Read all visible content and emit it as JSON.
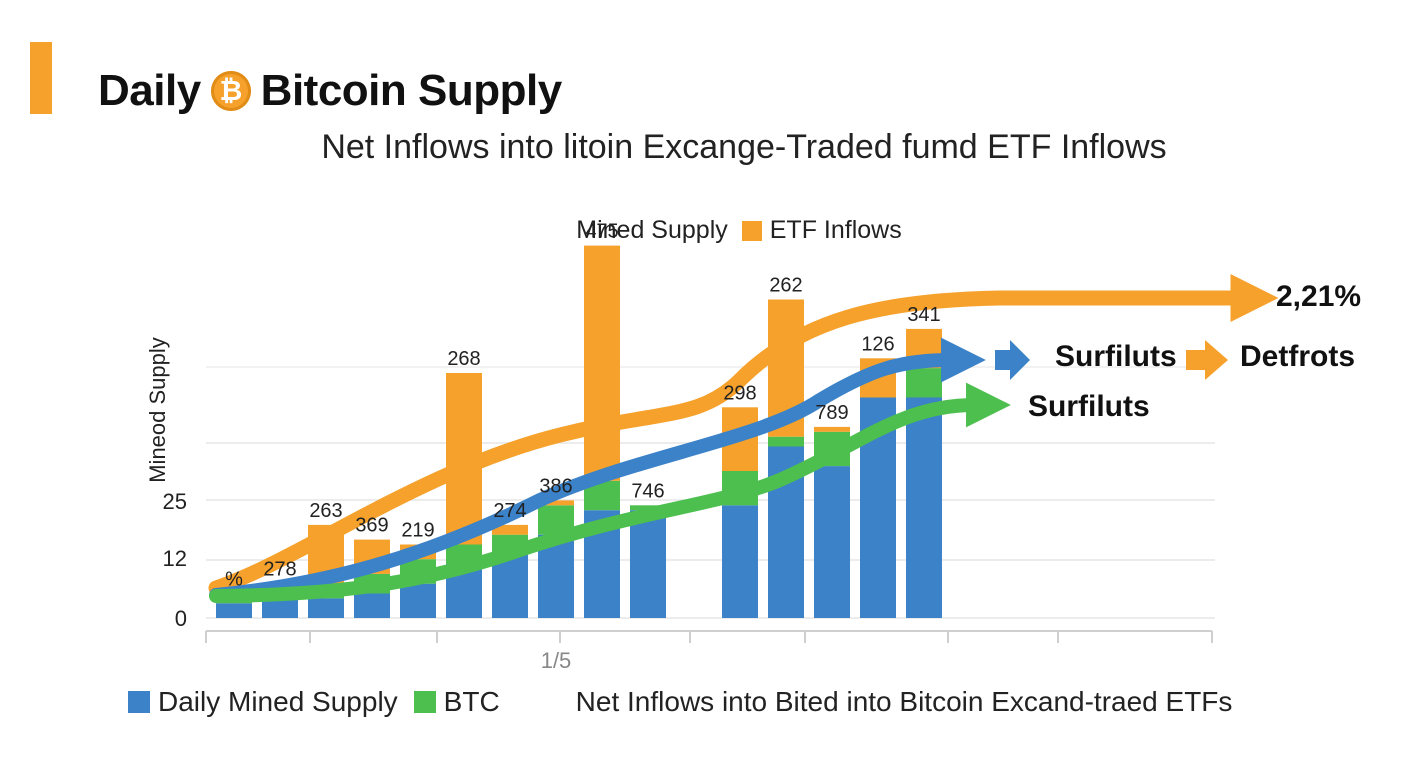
{
  "header": {
    "title_left": "Daily",
    "title_coin_glyph": "₿",
    "title_right": "Bitcoin Supply",
    "subtitle": "Net Inflows into litoin Excange-Traded fumd ETF Inflows"
  },
  "legend_top": {
    "item1": "Mined Supply",
    "item2": "ETF Inflows"
  },
  "legend_bottom": {
    "item1": "Daily Mined Supply",
    "item2": "BTC",
    "note": "Net Inflows into Bited into Bitcoin Excand-traed ETFs"
  },
  "colors": {
    "orange": "#f5a12b",
    "blue": "#3b82c8",
    "green": "#4cbf4f"
  },
  "chart_data": {
    "type": "bar",
    "ylabel": "Mineod Supply",
    "xlabel": "1/5",
    "y_ticks": [
      0,
      12,
      25
    ],
    "bar_data_labels": [
      "%",
      "278",
      "263",
      "369",
      "219",
      "268",
      "274",
      "386",
      "475",
      "746",
      "",
      "298",
      "262",
      "789",
      "126",
      "341"
    ],
    "series": [
      {
        "name": "Daily Mined Supply",
        "values": [
          3,
          4,
          4,
          5,
          7,
          11,
          13,
          17,
          22,
          22,
          null,
          23,
          35,
          31,
          45,
          45
        ]
      },
      {
        "name": "BTC",
        "values": [
          1,
          1,
          1,
          4,
          5,
          4,
          4,
          6,
          6,
          1,
          null,
          7,
          2,
          7,
          0,
          6
        ]
      },
      {
        "name": "ETF Inflows",
        "values": [
          1,
          2,
          14,
          7,
          3,
          35,
          2,
          1,
          48,
          0,
          null,
          13,
          28,
          1,
          8,
          8
        ]
      }
    ],
    "curves": [
      {
        "name": "ETF Inflows trend",
        "label": "2,21%"
      },
      {
        "name": "Mined Supply trend",
        "label": "Surfiluts",
        "label2": "Detfrots"
      },
      {
        "name": "BTC trend",
        "label": "Surfiluts"
      }
    ]
  }
}
